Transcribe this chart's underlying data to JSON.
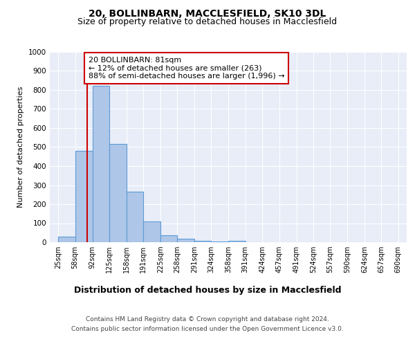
{
  "title": "20, BOLLINBARN, MACCLESFIELD, SK10 3DL",
  "subtitle": "Size of property relative to detached houses in Macclesfield",
  "xlabel": "Distribution of detached houses by size in Macclesfield",
  "ylabel": "Number of detached properties",
  "footnote1": "Contains HM Land Registry data © Crown copyright and database right 2024.",
  "footnote2": "Contains public sector information licensed under the Open Government Licence v3.0.",
  "bar_edges": [
    25,
    58,
    92,
    125,
    158,
    191,
    225,
    258,
    291,
    324,
    358,
    391,
    424,
    457,
    491,
    524,
    557,
    590,
    624,
    657,
    690
  ],
  "bar_heights": [
    30,
    480,
    820,
    515,
    265,
    110,
    38,
    20,
    8,
    5,
    8,
    0,
    0,
    0,
    0,
    0,
    0,
    0,
    0,
    0
  ],
  "bar_color": "#aec6e8",
  "bar_edge_color": "#5b9bd5",
  "bar_linewidth": 0.8,
  "red_line_x": 81,
  "red_line_color": "#cc0000",
  "annotation_text": "20 BOLLINBARN: 81sqm\n← 12% of detached houses are smaller (263)\n88% of semi-detached houses are larger (1,996) →",
  "annotation_box_color": "#ffffff",
  "annotation_box_edge_color": "#cc0000",
  "ylim": [
    0,
    1000
  ],
  "yticks": [
    0,
    100,
    200,
    300,
    400,
    500,
    600,
    700,
    800,
    900,
    1000
  ],
  "tick_labels": [
    "25sqm",
    "58sqm",
    "92sqm",
    "125sqm",
    "158sqm",
    "191sqm",
    "225sqm",
    "258sqm",
    "291sqm",
    "324sqm",
    "358sqm",
    "391sqm",
    "424sqm",
    "457sqm",
    "491sqm",
    "524sqm",
    "557sqm",
    "590sqm",
    "624sqm",
    "657sqm",
    "690sqm"
  ],
  "background_color": "#e8edf8",
  "grid_color": "#ffffff",
  "title_fontsize": 10,
  "subtitle_fontsize": 9,
  "ylabel_fontsize": 8,
  "xlabel_fontsize": 9,
  "tick_fontsize": 7,
  "annotation_fontsize": 8,
  "footnote_fontsize": 6.5
}
